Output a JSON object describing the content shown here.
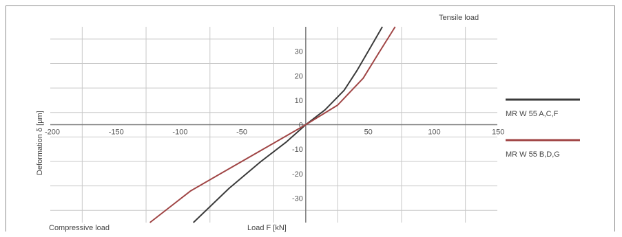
{
  "chart_data": {
    "type": "line",
    "title": "",
    "top_annotation": "Tensile load",
    "xlabel": "Load F [kN]",
    "ylabel": "Deformation δ [µm]",
    "bottom_left_annotation": "Compressive load",
    "xlim": [
      -200,
      150
    ],
    "ylim": [
      -40,
      40
    ],
    "x_ticks": [
      -200,
      -150,
      -100,
      -50,
      50,
      100,
      150
    ],
    "x_tick_labels": [
      "-200",
      "-150",
      "-100",
      "-50",
      "50",
      "100",
      "150"
    ],
    "y_ticks": [
      30,
      20,
      10,
      0,
      -10,
      -20,
      -30
    ],
    "y_tick_labels": [
      "30",
      "20",
      "10",
      "0",
      "-10",
      "-20",
      "-30"
    ],
    "grid": true,
    "legend_position": "right",
    "series": [
      {
        "name": "MR W 55 A,C,F",
        "color": "#3a3a3a",
        "x": [
          -88,
          -60,
          -35,
          -15,
          0,
          15,
          30,
          40,
          50,
          60
        ],
        "y": [
          -40,
          -26,
          -15,
          -7,
          0,
          6,
          14,
          22,
          31,
          40
        ]
      },
      {
        "name": "MR W 55 B,D,G",
        "color": "#a04545",
        "x": [
          -122,
          -90,
          -60,
          -30,
          0,
          25,
          45,
          58,
          70
        ],
        "y": [
          -40,
          -27,
          -18,
          -9,
          0,
          8,
          19,
          30,
          40
        ]
      }
    ]
  }
}
